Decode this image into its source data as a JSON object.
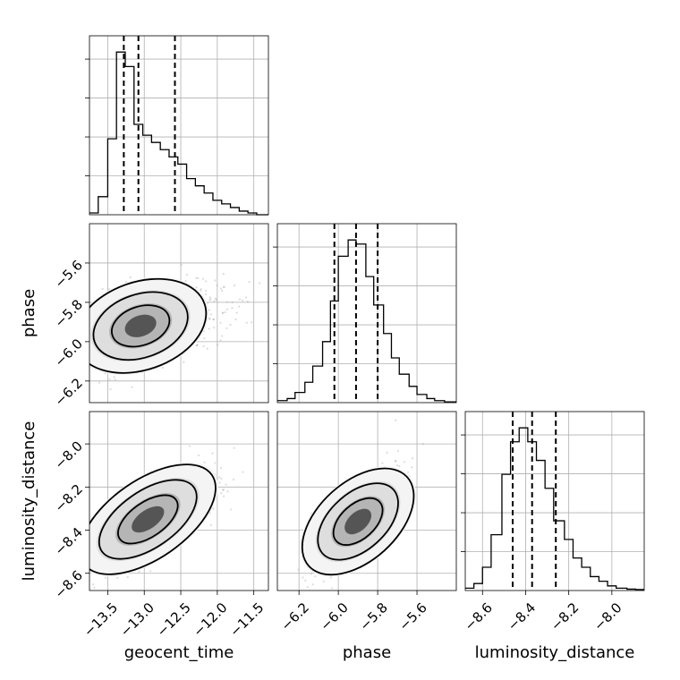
{
  "chart_data": {
    "type": "corner",
    "parameters": [
      "geocent_time",
      "phase",
      "luminosity_distance"
    ],
    "ranges": {
      "geocent_time": [
        -13.75,
        -11.3
      ],
      "phase": [
        -6.31,
        -5.4
      ],
      "luminosity_distance": [
        -8.68,
        -7.85
      ]
    },
    "ticks": {
      "geocent_time": [
        -13.5,
        -13.0,
        -12.5,
        -12.0,
        -11.5
      ],
      "phase": [
        -6.2,
        -6.0,
        -5.8,
        -5.6
      ],
      "luminosity_distance": [
        -8.6,
        -8.4,
        -8.2,
        -8.0
      ]
    },
    "tick_labels": {
      "geocent_time": [
        "−13.5",
        "−13.0",
        "−12.5",
        "−12.0",
        "−11.5"
      ],
      "phase": [
        "−6.2",
        "−6.0",
        "−5.8",
        "−5.6"
      ],
      "luminosity_distance": [
        "−8.6",
        "−8.4",
        "−8.2",
        "−8.0"
      ]
    },
    "histograms": {
      "geocent_time": {
        "edges": [
          -13.75,
          -13.63,
          -13.5,
          -13.38,
          -13.26,
          -13.14,
          -13.02,
          -12.9,
          -12.78,
          -12.66,
          -12.54,
          -12.42,
          -12.3,
          -12.18,
          -12.06,
          -11.94,
          -11.82,
          -11.7,
          -11.58,
          -11.46,
          -11.3
        ],
        "counts": [
          0.5,
          5,
          21,
          45,
          41,
          25,
          22,
          20,
          18,
          16,
          14,
          10,
          8,
          6,
          4,
          3,
          2,
          1,
          0.5,
          0
        ],
        "quantiles": [
          -13.28,
          -13.08,
          -12.58
        ]
      },
      "phase": {
        "edges": [
          -6.31,
          -6.26,
          -6.22,
          -6.17,
          -6.13,
          -6.08,
          -6.04,
          -6.0,
          -5.95,
          -5.91,
          -5.86,
          -5.82,
          -5.77,
          -5.73,
          -5.69,
          -5.64,
          -5.6,
          -5.55,
          -5.51,
          -5.46,
          -5.4
        ],
        "counts": [
          0.5,
          1,
          2.5,
          5,
          9,
          15,
          25,
          36,
          40,
          39,
          31,
          24,
          17,
          11,
          7,
          4,
          2,
          1,
          0.5,
          0.2
        ],
        "quantiles": [
          -6.02,
          -5.91,
          -5.8
        ]
      },
      "luminosity_distance": {
        "edges": [
          -8.68,
          -8.64,
          -8.6,
          -8.56,
          -8.51,
          -8.47,
          -8.43,
          -8.39,
          -8.35,
          -8.31,
          -8.27,
          -8.22,
          -8.18,
          -8.14,
          -8.1,
          -8.06,
          -8.02,
          -7.98,
          -7.93,
          -7.89,
          -7.85
        ],
        "counts": [
          0.5,
          1.5,
          5,
          12,
          25,
          32,
          35,
          32,
          28,
          22,
          15,
          11,
          7,
          5,
          3,
          2,
          1,
          0.5,
          0.3,
          0.2
        ],
        "quantiles": [
          -8.46,
          -8.37,
          -8.26
        ]
      }
    },
    "pairs": [
      {
        "x": "geocent_time",
        "y": "phase",
        "mean": [
          -13.05,
          -5.92
        ],
        "sd": [
          0.35,
          0.1
        ],
        "corr": 0.45
      },
      {
        "x": "geocent_time",
        "y": "luminosity_distance",
        "mean": [
          -12.95,
          -8.35
        ],
        "sd": [
          0.35,
          0.11
        ],
        "corr": 0.75
      },
      {
        "x": "phase",
        "y": "luminosity_distance",
        "mean": [
          -5.9,
          -8.36
        ],
        "sd": [
          0.1,
          0.11
        ],
        "corr": 0.75
      }
    ]
  }
}
